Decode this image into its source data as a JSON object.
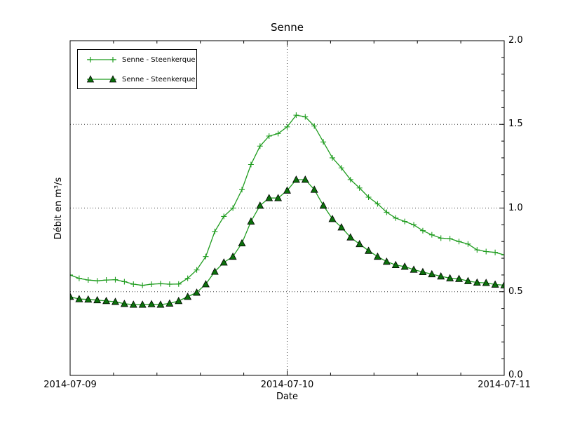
{
  "chart_data": {
    "type": "line",
    "title": "Senne",
    "xlabel": "Date",
    "ylabel": "Débit en m³/s",
    "x_tick_labels": [
      "2014-07-09",
      "2014-07-10",
      "2014-07-11"
    ],
    "x_tick_days": [
      0,
      1,
      2
    ],
    "x_minor_tick_interval_days": 0.2,
    "x_range_days": [
      0,
      2
    ],
    "ylim": [
      0.0,
      2.0
    ],
    "y_major_ticks": [
      0.0,
      0.5,
      1.0,
      1.5,
      2.0
    ],
    "y_tick_labels": [
      "0.0",
      "0.5",
      "1.0",
      "1.5",
      "2.0"
    ],
    "y_minor_tick_interval": 0.1,
    "grid": {
      "h_values": [
        0.5,
        1.0,
        1.5
      ],
      "v_days": [
        1
      ]
    },
    "legend_position": "upper left",
    "sample_interval_hours": 1,
    "series": [
      {
        "name": "Senne - Steenkerque",
        "marker": "plus",
        "color": "#1e9c1e",
        "values": [
          0.6,
          0.58,
          0.57,
          0.565,
          0.57,
          0.572,
          0.56,
          0.545,
          0.538,
          0.545,
          0.548,
          0.545,
          0.546,
          0.58,
          0.63,
          0.71,
          0.86,
          0.95,
          1.0,
          1.11,
          1.26,
          1.37,
          1.43,
          1.445,
          1.485,
          1.555,
          1.545,
          1.49,
          1.395,
          1.3,
          1.24,
          1.17,
          1.12,
          1.065,
          1.025,
          0.975,
          0.94,
          0.92,
          0.9,
          0.865,
          0.84,
          0.82,
          0.817,
          0.8,
          0.785,
          0.75,
          0.74,
          0.735,
          0.72
        ]
      },
      {
        "name": "Senne - Steenkerque",
        "marker": "triangle",
        "color": "#1e9c1e",
        "marker_fill": "#0b700b",
        "marker_edge": "#000000",
        "values": [
          0.47,
          0.456,
          0.454,
          0.45,
          0.445,
          0.44,
          0.428,
          0.423,
          0.423,
          0.426,
          0.423,
          0.43,
          0.445,
          0.47,
          0.495,
          0.545,
          0.62,
          0.675,
          0.71,
          0.79,
          0.92,
          1.015,
          1.06,
          1.06,
          1.105,
          1.17,
          1.17,
          1.11,
          1.015,
          0.935,
          0.885,
          0.825,
          0.785,
          0.745,
          0.71,
          0.68,
          0.66,
          0.65,
          0.632,
          0.618,
          0.605,
          0.592,
          0.581,
          0.577,
          0.564,
          0.555,
          0.553,
          0.543,
          0.539
        ]
      }
    ]
  },
  "colors": {
    "background": "#ffffff",
    "axis": "#000000",
    "grid": "#3c3c3c",
    "series_green": "#1e9c1e",
    "triangle_fill": "#0b700b"
  }
}
